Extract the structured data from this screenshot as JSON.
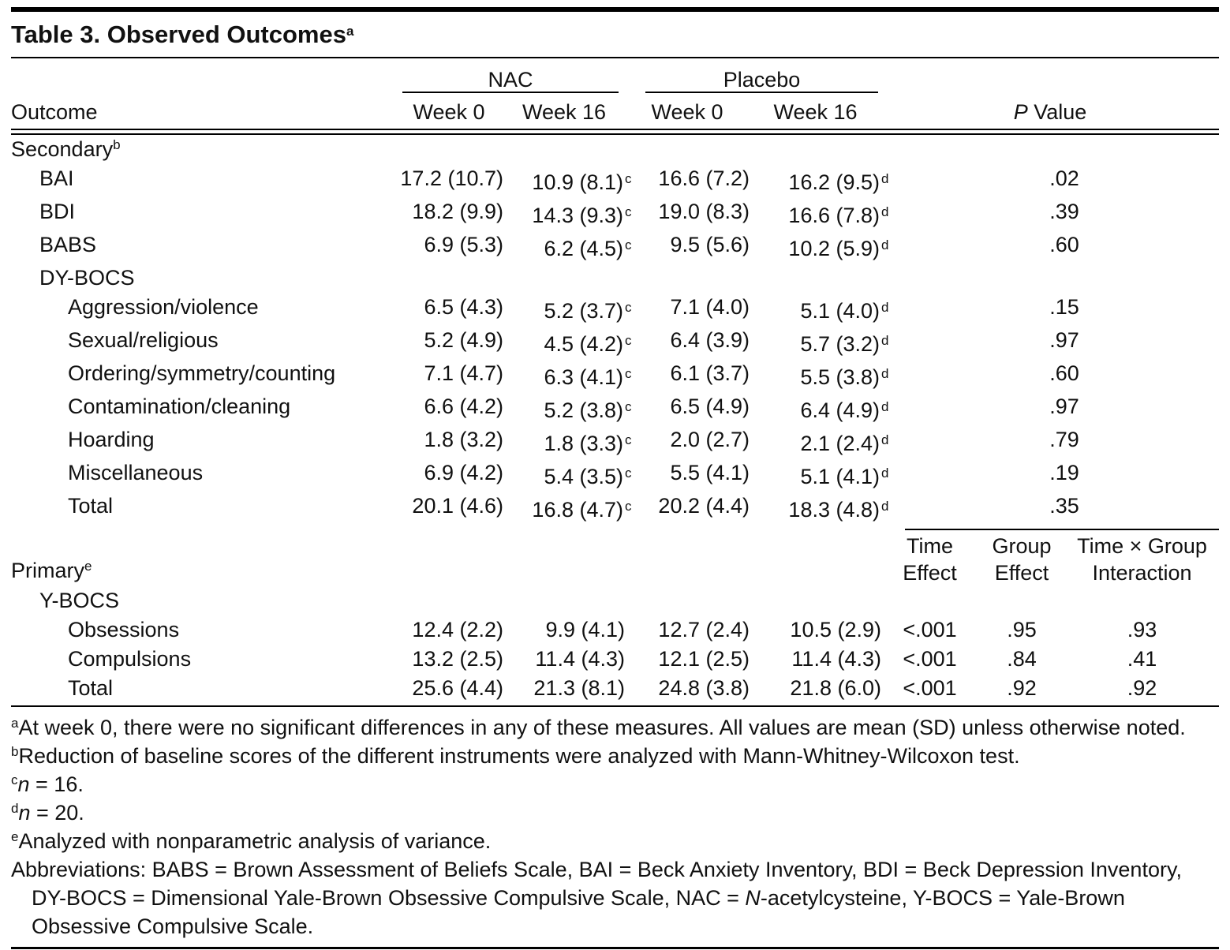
{
  "table": {
    "title": {
      "text": "Table 3. Observed Outcomes",
      "sup": "a"
    },
    "header": {
      "outcome": "Outcome",
      "spanners": [
        {
          "label": "NAC"
        },
        {
          "label": "Placebo"
        }
      ],
      "weeks": [
        "Week 0",
        "Week 16",
        "Week 0",
        "Week 16"
      ],
      "p_value": {
        "italic": "P",
        "rest": " Value"
      }
    },
    "primary_band": {
      "cols": [
        {
          "line1": "Time",
          "line2": "Effect"
        },
        {
          "line1": "Group",
          "line2": "Effect"
        },
        {
          "line1": "Time × Group",
          "line2": "Interaction"
        }
      ]
    },
    "rows": [
      {
        "type": "section",
        "label": "Secondary",
        "sup": "b",
        "indent": 0
      },
      {
        "type": "data",
        "label": "BAI",
        "indent": 1,
        "values": [
          {
            "v": "17.2 (10.7)"
          },
          {
            "v": "10.9 (8.1)",
            "sup": "c"
          },
          {
            "v": "16.6 (7.2)"
          },
          {
            "v": "16.2 (9.5)",
            "sup": "d"
          }
        ],
        "p": ".02"
      },
      {
        "type": "data",
        "label": "BDI",
        "indent": 1,
        "values": [
          {
            "v": "18.2 (9.9)"
          },
          {
            "v": "14.3 (9.3)",
            "sup": "c"
          },
          {
            "v": "19.0 (8.3)"
          },
          {
            "v": "16.6 (7.8)",
            "sup": "d"
          }
        ],
        "p": ".39"
      },
      {
        "type": "data",
        "label": "BABS",
        "indent": 1,
        "values": [
          {
            "v": "6.9 (5.3)"
          },
          {
            "v": "6.2 (4.5)",
            "sup": "c"
          },
          {
            "v": "9.5 (5.6)"
          },
          {
            "v": "10.2 (5.9)",
            "sup": "d"
          }
        ],
        "p": ".60"
      },
      {
        "type": "subsection",
        "label": "DY-BOCS",
        "indent": 1
      },
      {
        "type": "data",
        "label": "Aggression/violence",
        "indent": 2,
        "values": [
          {
            "v": "6.5 (4.3)"
          },
          {
            "v": "5.2 (3.7)",
            "sup": "c"
          },
          {
            "v": "7.1 (4.0)"
          },
          {
            "v": "5.1 (4.0)",
            "sup": "d"
          }
        ],
        "p": ".15"
      },
      {
        "type": "data",
        "label": "Sexual/religious",
        "indent": 2,
        "values": [
          {
            "v": "5.2 (4.9)"
          },
          {
            "v": "4.5 (4.2)",
            "sup": "c"
          },
          {
            "v": "6.4 (3.9)"
          },
          {
            "v": "5.7 (3.2)",
            "sup": "d"
          }
        ],
        "p": ".97"
      },
      {
        "type": "data",
        "label": "Ordering/symmetry/counting",
        "indent": 2,
        "values": [
          {
            "v": "7.1 (4.7)"
          },
          {
            "v": "6.3 (4.1)",
            "sup": "c"
          },
          {
            "v": "6.1 (3.7)"
          },
          {
            "v": "5.5 (3.8)",
            "sup": "d"
          }
        ],
        "p": ".60"
      },
      {
        "type": "data",
        "label": "Contamination/cleaning",
        "indent": 2,
        "values": [
          {
            "v": "6.6 (4.2)"
          },
          {
            "v": "5.2 (3.8)",
            "sup": "c"
          },
          {
            "v": "6.5 (4.9)"
          },
          {
            "v": "6.4 (4.9)",
            "sup": "d"
          }
        ],
        "p": ".97"
      },
      {
        "type": "data",
        "label": "Hoarding",
        "indent": 2,
        "values": [
          {
            "v": "1.8 (3.2)"
          },
          {
            "v": "1.8 (3.3)",
            "sup": "c"
          },
          {
            "v": "2.0 (2.7)"
          },
          {
            "v": "2.1 (2.4)",
            "sup": "d"
          }
        ],
        "p": ".79"
      },
      {
        "type": "data",
        "label": "Miscellaneous",
        "indent": 2,
        "values": [
          {
            "v": "6.9 (4.2)"
          },
          {
            "v": "5.4 (3.5)",
            "sup": "c"
          },
          {
            "v": "5.5 (4.1)"
          },
          {
            "v": "5.1 (4.1)",
            "sup": "d"
          }
        ],
        "p": ".19"
      },
      {
        "type": "data",
        "label": "Total",
        "indent": 2,
        "values": [
          {
            "v": "20.1 (4.6)"
          },
          {
            "v": "16.8 (4.7)",
            "sup": "c"
          },
          {
            "v": "20.2 (4.4)"
          },
          {
            "v": "18.3 (4.8)",
            "sup": "d"
          }
        ],
        "p": ".35"
      },
      {
        "type": "band",
        "label": "Primary",
        "sup": "e",
        "indent": 0
      },
      {
        "type": "subsection",
        "label": "Y-BOCS",
        "indent": 1
      },
      {
        "type": "data",
        "label": "Obsessions",
        "indent": 2,
        "values": [
          {
            "v": "12.4 (2.2)"
          },
          {
            "v": "9.9 (4.1)"
          },
          {
            "v": "12.7 (2.4)"
          },
          {
            "v": "10.5 (2.9)"
          }
        ],
        "p3": [
          "<.001",
          ".95",
          ".93"
        ]
      },
      {
        "type": "data",
        "label": "Compulsions",
        "indent": 2,
        "values": [
          {
            "v": "13.2 (2.5)"
          },
          {
            "v": "11.4 (4.3)"
          },
          {
            "v": "12.1 (2.5)"
          },
          {
            "v": "11.4 (4.3)"
          }
        ],
        "p3": [
          "<.001",
          ".84",
          ".41"
        ]
      },
      {
        "type": "data",
        "label": "Total",
        "indent": 2,
        "values": [
          {
            "v": "25.6 (4.4)"
          },
          {
            "v": "21.3 (8.1)"
          },
          {
            "v": "24.8 (3.8)"
          },
          {
            "v": "21.8 (6.0)"
          }
        ],
        "p3": [
          "<.001",
          ".92",
          ".92"
        ]
      }
    ],
    "footnotes": [
      {
        "sup": "a",
        "parts": [
          {
            "t": "At week 0, there were no significant differences in any of these measures. All values are mean (SD) unless otherwise noted."
          }
        ]
      },
      {
        "sup": "b",
        "parts": [
          {
            "t": "Reduction of baseline scores of the different instruments were analyzed with Mann-Whitney-Wilcoxon test."
          }
        ]
      },
      {
        "sup": "c",
        "parts": [
          {
            "t": "n",
            "i": true
          },
          {
            "t": " = 16."
          }
        ]
      },
      {
        "sup": "d",
        "parts": [
          {
            "t": "n",
            "i": true
          },
          {
            "t": " = 20."
          }
        ]
      },
      {
        "sup": "e",
        "parts": [
          {
            "t": "Analyzed with nonparametric analysis of variance."
          }
        ]
      },
      {
        "sup": "",
        "parts": [
          {
            "t": "Abbreviations: BABS = Brown Assessment of Beliefs Scale, BAI = Beck Anxiety Inventory, BDI = Beck Depression Inventory, DY-BOCS = Dimensional Yale-Brown Obsessive Compulsive Scale, NAC = "
          },
          {
            "t": "N",
            "i": true
          },
          {
            "t": "-acetylcysteine, Y-BOCS = Yale-Brown Obsessive Compulsive Scale."
          }
        ]
      }
    ]
  }
}
